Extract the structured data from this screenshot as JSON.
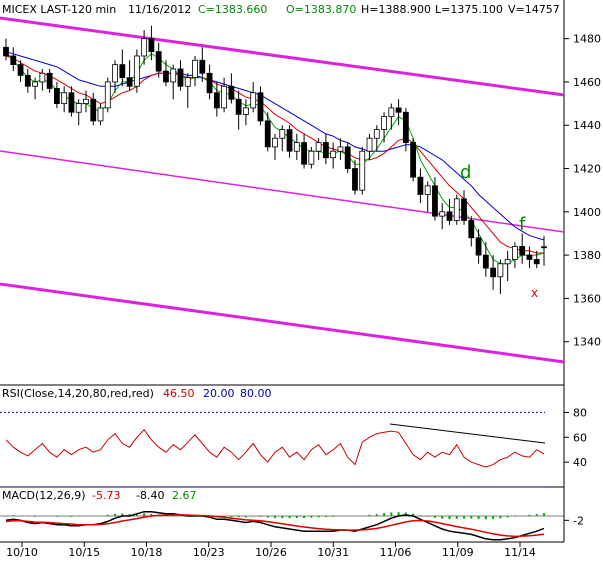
{
  "header": {
    "symbol": "MICEX LAST-120 min",
    "date": "11/16/2012",
    "close": "C=1383.660",
    "open": "O=1383.870",
    "high": "H=1388.900",
    "low": "L=1375.100",
    "volume": "V=14757"
  },
  "rsi_header": {
    "label": "RSI(Close,14,20,80,red,red)",
    "value": "46.50",
    "lower": "20.00",
    "upper": "80.00"
  },
  "macd_header": {
    "label": "MACD(12,26,9)",
    "macd": "-5.73",
    "signal": "-8.40",
    "hist": "2.67"
  },
  "annotations": {
    "d": "d",
    "f": "f",
    "x": "x"
  },
  "colors": {
    "up": "#ffffff",
    "down": "#000000",
    "ma_fast": "#00aa00",
    "ma_mid": "#dd0000",
    "ma_slow": "#0000cc",
    "channel": "#dd22dd",
    "rsi": "#cc0000",
    "rsi_levels": "#0000aa",
    "macd_signal": "#dd0000",
    "hist": "#00aa00"
  },
  "chart_data": [
    {
      "type": "candlestick",
      "panel": "price",
      "ylim": [
        1320,
        1490
      ],
      "yticks": [
        1340,
        1360,
        1380,
        1400,
        1420,
        1440,
        1460,
        1480
      ],
      "xticks": [
        "10/10",
        "10/15",
        "10/18",
        "10/23",
        "10/26",
        "10/31",
        "11/06",
        "11/09",
        "11/14"
      ],
      "ohlc": [
        [
          1476,
          1480,
          1470,
          1472
        ],
        [
          1472,
          1476,
          1465,
          1468
        ],
        [
          1468,
          1470,
          1460,
          1463
        ],
        [
          1463,
          1466,
          1455,
          1458
        ],
        [
          1458,
          1462,
          1452,
          1460
        ],
        [
          1460,
          1466,
          1456,
          1464
        ],
        [
          1464,
          1466,
          1455,
          1457
        ],
        [
          1457,
          1460,
          1448,
          1450
        ],
        [
          1450,
          1458,
          1446,
          1455
        ],
        [
          1455,
          1458,
          1444,
          1446
        ],
        [
          1446,
          1452,
          1440,
          1450
        ],
        [
          1450,
          1456,
          1446,
          1452
        ],
        [
          1452,
          1455,
          1440,
          1442
        ],
        [
          1442,
          1450,
          1440,
          1448
        ],
        [
          1448,
          1462,
          1446,
          1460
        ],
        [
          1460,
          1470,
          1455,
          1468
        ],
        [
          1468,
          1475,
          1458,
          1462
        ],
        [
          1462,
          1470,
          1456,
          1458
        ],
        [
          1458,
          1475,
          1455,
          1472
        ],
        [
          1472,
          1484,
          1468,
          1480
        ],
        [
          1480,
          1486,
          1470,
          1474
        ],
        [
          1474,
          1478,
          1462,
          1465
        ],
        [
          1465,
          1470,
          1458,
          1460
        ],
        [
          1460,
          1468,
          1452,
          1466
        ],
        [
          1466,
          1470,
          1456,
          1458
        ],
        [
          1458,
          1464,
          1448,
          1462
        ],
        [
          1462,
          1472,
          1458,
          1470
        ],
        [
          1470,
          1476,
          1460,
          1464
        ],
        [
          1464,
          1468,
          1452,
          1455
        ],
        [
          1455,
          1460,
          1444,
          1448
        ],
        [
          1448,
          1462,
          1446,
          1458
        ],
        [
          1458,
          1464,
          1450,
          1452
        ],
        [
          1452,
          1456,
          1438,
          1445
        ],
        [
          1445,
          1452,
          1440,
          1448
        ],
        [
          1448,
          1460,
          1446,
          1455
        ],
        [
          1455,
          1458,
          1440,
          1442
        ],
        [
          1442,
          1446,
          1428,
          1430
        ],
        [
          1430,
          1436,
          1424,
          1434
        ],
        [
          1434,
          1440,
          1428,
          1438
        ],
        [
          1438,
          1440,
          1425,
          1428
        ],
        [
          1428,
          1436,
          1424,
          1432
        ],
        [
          1432,
          1436,
          1420,
          1422
        ],
        [
          1422,
          1430,
          1420,
          1428
        ],
        [
          1428,
          1434,
          1424,
          1432
        ],
        [
          1432,
          1436,
          1422,
          1425
        ],
        [
          1425,
          1432,
          1420,
          1428
        ],
        [
          1428,
          1434,
          1424,
          1430
        ],
        [
          1430,
          1432,
          1418,
          1420
        ],
        [
          1420,
          1424,
          1408,
          1410
        ],
        [
          1410,
          1430,
          1408,
          1428
        ],
        [
          1428,
          1436,
          1424,
          1434
        ],
        [
          1434,
          1440,
          1428,
          1438
        ],
        [
          1438,
          1446,
          1432,
          1444
        ],
        [
          1444,
          1450,
          1438,
          1448
        ],
        [
          1448,
          1452,
          1440,
          1446
        ],
        [
          1446,
          1448,
          1428,
          1432
        ],
        [
          1432,
          1434,
          1414,
          1416
        ],
        [
          1416,
          1420,
          1404,
          1408
        ],
        [
          1408,
          1414,
          1400,
          1412
        ],
        [
          1412,
          1416,
          1396,
          1398
        ],
        [
          1398,
          1404,
          1392,
          1400
        ],
        [
          1400,
          1406,
          1394,
          1396
        ],
        [
          1396,
          1408,
          1394,
          1406
        ],
        [
          1406,
          1410,
          1394,
          1396
        ],
        [
          1396,
          1398,
          1384,
          1388
        ],
        [
          1388,
          1392,
          1376,
          1380
        ],
        [
          1380,
          1386,
          1370,
          1374
        ],
        [
          1374,
          1380,
          1364,
          1370
        ],
        [
          1370,
          1378,
          1362,
          1376
        ],
        [
          1376,
          1382,
          1368,
          1378
        ],
        [
          1378,
          1386,
          1374,
          1384
        ],
        [
          1384,
          1390,
          1376,
          1380
        ],
        [
          1380,
          1384,
          1374,
          1378
        ],
        [
          1378,
          1382,
          1374,
          1376
        ],
        [
          1383.87,
          1388.9,
          1375.1,
          1383.66
        ]
      ],
      "ma_fast": [
        1474,
        1470,
        1466,
        1462,
        1460,
        1461,
        1460,
        1456,
        1454,
        1451,
        1450,
        1450,
        1448,
        1446,
        1450,
        1456,
        1460,
        1460,
        1464,
        1470,
        1473,
        1471,
        1468,
        1466,
        1463,
        1461,
        1462,
        1462,
        1460,
        1456,
        1455,
        1454,
        1451,
        1449,
        1450,
        1449,
        1444,
        1439,
        1437,
        1434,
        1432,
        1429,
        1428,
        1428,
        1427,
        1427,
        1428,
        1426,
        1422,
        1422,
        1425,
        1429,
        1434,
        1439,
        1444,
        1442,
        1434,
        1424,
        1418,
        1412,
        1406,
        1402,
        1402,
        1400,
        1396,
        1390,
        1384,
        1378,
        1376,
        1376,
        1378,
        1380,
        1380,
        1380,
        1381
      ],
      "ma_mid": [
        1472,
        1471,
        1469,
        1467,
        1465,
        1464,
        1463,
        1461,
        1459,
        1457,
        1455,
        1454,
        1452,
        1450,
        1451,
        1453,
        1455,
        1456,
        1458,
        1461,
        1463,
        1464,
        1464,
        1464,
        1463,
        1462,
        1462,
        1462,
        1461,
        1459,
        1458,
        1457,
        1455,
        1453,
        1452,
        1451,
        1448,
        1445,
        1443,
        1441,
        1438,
        1436,
        1434,
        1432,
        1430,
        1429,
        1428,
        1427,
        1425,
        1424,
        1424,
        1425,
        1427,
        1430,
        1433,
        1434,
        1432,
        1428,
        1424,
        1420,
        1416,
        1412,
        1409,
        1406,
        1402,
        1398,
        1394,
        1390,
        1386,
        1384,
        1383,
        1382,
        1382,
        1381,
        1381
      ],
      "ma_slow": [
        1474,
        1473,
        1472,
        1471,
        1470,
        1469,
        1468,
        1467,
        1465,
        1463,
        1461,
        1460,
        1459,
        1458,
        1458,
        1458,
        1459,
        1460,
        1461,
        1462,
        1463,
        1464,
        1464,
        1464,
        1464,
        1463,
        1463,
        1462,
        1461,
        1460,
        1459,
        1458,
        1457,
        1456,
        1455,
        1454,
        1452,
        1450,
        1448,
        1446,
        1444,
        1442,
        1440,
        1438,
        1436,
        1435,
        1433,
        1432,
        1430,
        1429,
        1428,
        1428,
        1428,
        1429,
        1430,
        1431,
        1431,
        1430,
        1428,
        1426,
        1424,
        1421,
        1418,
        1415,
        1412,
        1408,
        1405,
        1402,
        1399,
        1396,
        1393,
        1391,
        1389,
        1388,
        1387
      ]
    },
    {
      "type": "line",
      "panel": "rsi",
      "ylim": [
        20,
        90
      ],
      "yticks": [
        40,
        60,
        80
      ],
      "levels": [
        20,
        80
      ],
      "values": [
        58,
        52,
        48,
        45,
        50,
        55,
        48,
        44,
        50,
        46,
        50,
        52,
        48,
        50,
        58,
        63,
        55,
        52,
        60,
        66,
        58,
        52,
        48,
        54,
        50,
        56,
        62,
        55,
        48,
        44,
        52,
        48,
        42,
        48,
        55,
        46,
        40,
        48,
        52,
        44,
        48,
        42,
        50,
        54,
        46,
        50,
        55,
        44,
        38,
        56,
        60,
        63,
        64,
        65,
        64,
        55,
        46,
        42,
        48,
        44,
        48,
        46,
        54,
        44,
        40,
        38,
        36,
        38,
        42,
        44,
        48,
        45,
        44,
        50,
        46.5
      ]
    },
    {
      "type": "line",
      "panel": "macd",
      "ylim": [
        -12,
        6
      ],
      "yticks": [
        -2
      ],
      "macd": [
        -2,
        -1.5,
        -2,
        -3,
        -3.5,
        -3,
        -3.5,
        -4,
        -4,
        -4.5,
        -4.5,
        -4,
        -4,
        -3.5,
        -2.5,
        -1,
        0,
        0,
        1,
        2,
        2,
        1.5,
        1,
        1,
        0.5,
        0,
        0,
        0,
        -0.5,
        -1.5,
        -1.5,
        -2,
        -2.5,
        -3,
        -2.5,
        -3,
        -4,
        -5,
        -5.5,
        -6,
        -6.5,
        -7,
        -7,
        -7,
        -7,
        -7,
        -6.5,
        -6.5,
        -7,
        -6,
        -5,
        -4,
        -2.5,
        -1,
        0,
        0.5,
        0,
        -1.5,
        -3,
        -4.5,
        -6,
        -7,
        -7.5,
        -8,
        -8.5,
        -9.5,
        -10.5,
        -11,
        -11,
        -10.5,
        -10,
        -9,
        -8,
        -7,
        -5.73
      ],
      "signal": [
        -2.5,
        -2.2,
        -2.2,
        -2.5,
        -2.8,
        -2.9,
        -3,
        -3.3,
        -3.5,
        -3.7,
        -4,
        -4,
        -4,
        -3.9,
        -3.6,
        -3,
        -2.3,
        -1.8,
        -1.2,
        -0.5,
        0,
        0.3,
        0.4,
        0.5,
        0.5,
        0.4,
        0.3,
        0.2,
        0,
        -0.3,
        -0.6,
        -1,
        -1.4,
        -1.8,
        -2,
        -2.2,
        -2.6,
        -3.1,
        -3.6,
        -4.1,
        -4.6,
        -5.1,
        -5.5,
        -5.8,
        -6.1,
        -6.3,
        -6.4,
        -6.5,
        -6.5,
        -6.4,
        -6.1,
        -5.7,
        -5.1,
        -4.3,
        -3.5,
        -2.7,
        -2.2,
        -2.1,
        -2.3,
        -2.8,
        -3.5,
        -4.2,
        -4.9,
        -5.5,
        -6.1,
        -6.8,
        -7.5,
        -8.2,
        -8.8,
        -9.2,
        -9.4,
        -9.3,
        -9.1,
        -8.8,
        -8.4
      ]
    }
  ]
}
